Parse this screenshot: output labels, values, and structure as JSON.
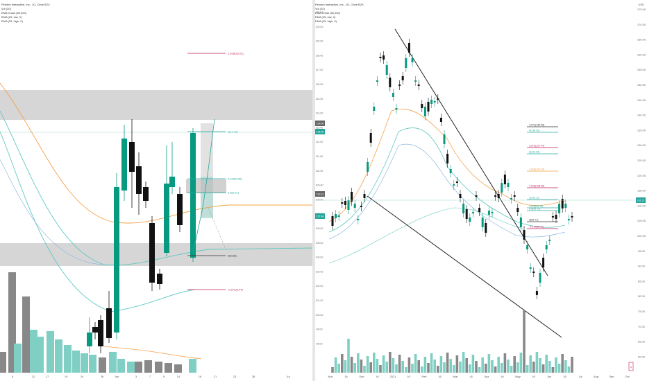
{
  "left_chart": {
    "header": {
      "title": "Peloton Interactive, Inc., 1D, Cboe BZX",
      "indicators": [
        "Vol (20)",
        "EMA Cross (50,200)",
        "EMA (25, low, 0)",
        "EMA (25, high, 0)"
      ]
    },
    "x_ticks": [
      "5",
      "12",
      "17",
      "19",
      "24",
      "26",
      "Jun",
      "3",
      "7",
      "9",
      "14",
      "16",
      "21",
      "23",
      "28",
      "Jul"
    ],
    "levels": [
      {
        "label": "1.618(16.22)",
        "color": "#c2185b"
      },
      {
        "label": "1(11.12)",
        "color": "#26a69a"
      },
      {
        "label": "0.618(9.96)",
        "color": "#26a69a"
      },
      {
        "label": "0.5(9.31)",
        "color": "#26a69a"
      },
      {
        "label": "0(6.88)",
        "color": "#333333"
      },
      {
        "label": "-0.272(5.44)",
        "color": "#c2185b"
      }
    ]
  },
  "right_chart": {
    "header": {
      "title": "Peloton Interactive, Inc., 1D, Cboe BZX",
      "indicators": [
        "Vol (20)",
        "EMA Cross (50,200)",
        "EMA (25, low, 0)",
        "EMA (25, high, 0)"
      ]
    },
    "currency": "USD",
    "price_ticks": [
      "175.00",
      "170.00",
      "165.00",
      "160.00",
      "155.00",
      "150.00",
      "145.00",
      "140.00",
      "135.00",
      "130.00",
      "125.00",
      "120.00",
      "115.00",
      "110.00",
      "105.00",
      "100.00",
      "95.00",
      "90.00",
      "85.00",
      "80.00",
      "75.00",
      "70.00",
      "65.00",
      "60.00"
    ],
    "left_ticks": [
      "121.00",
      "120.00",
      "119.00",
      "118.00",
      "117.00",
      "116.00",
      "115.00",
      "114.00",
      "113.00",
      "112.00",
      "111.00",
      "110.00",
      "109.00",
      "108.00",
      "107.00",
      "106.00",
      "105.00",
      "104.00",
      "103.00",
      "102.00",
      "101.00",
      "100.00",
      "99.00",
      "98.00"
    ],
    "x_ticks": [
      "Nov",
      "16",
      "Dec",
      "16",
      "2021",
      "16",
      "Feb",
      "16",
      "Mar",
      "16",
      "Apr",
      "16",
      "May",
      "16",
      "Jun",
      "16",
      "Jul",
      "Aug",
      "Sep",
      "Oct"
    ],
    "levels": [
      {
        "label": "4.272(136.08)",
        "color": "#333333"
      },
      {
        "label": "4(134.92)",
        "color": "#26a69a"
      },
      {
        "label": "3.272(127.44)",
        "color": "#c2185b"
      },
      {
        "label": "3(124.90)",
        "color": "#26a69a"
      },
      {
        "label": "2.618(120.20)",
        "color": "#f59c3a"
      },
      {
        "label": "1.618(108.36)",
        "color": "#c2185b"
      },
      {
        "label": "1(101.11)",
        "color": "#26a69a"
      },
      {
        "label": "0.618(96.16)",
        "color": "#26a69a"
      },
      {
        "label": "0.5(95.73)",
        "color": "#26a69a"
      },
      {
        "label": "0(89.71)",
        "color": "#333333"
      },
      {
        "label": "-0.272(86.81)",
        "color": "#c2185b"
      }
    ],
    "price_tags": [
      {
        "label": "139.00",
        "color": "#666666"
      },
      {
        "label": "135.00",
        "color": "#26a69a"
      },
      {
        "label": "109.19",
        "color": "#666666"
      },
      {
        "label": "107.40",
        "color": "#26a69a"
      }
    ],
    "last_price_tag": "101.11",
    "volume_tag": "1"
  },
  "colors": {
    "up": "#089981",
    "down": "#111111",
    "ema_orange": "#f5a04a",
    "ema_teal": "#5fc8c0",
    "zone": "#c8c8c8",
    "vol_up": "#7fcfc4",
    "vol_down": "#888888"
  }
}
